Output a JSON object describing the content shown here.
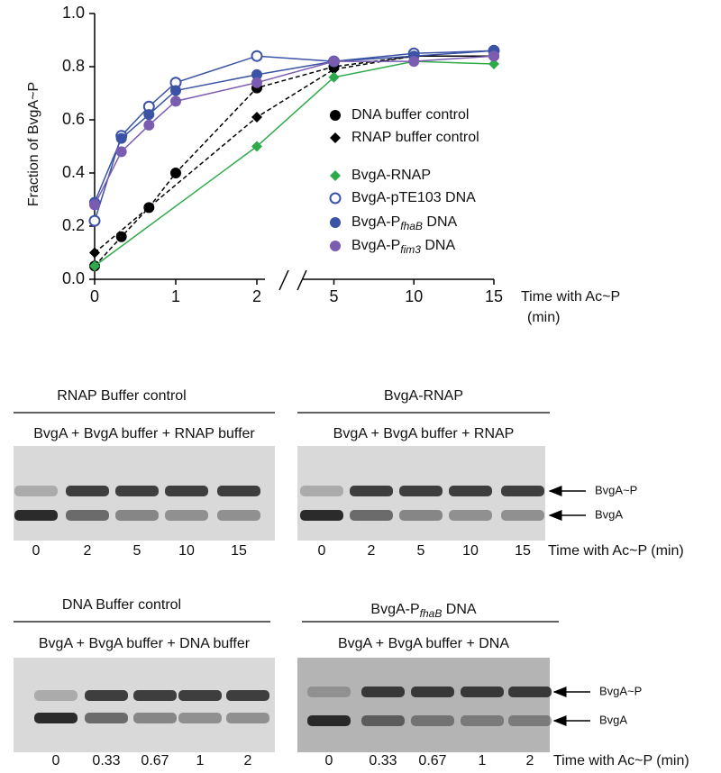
{
  "chart_data": {
    "type": "line",
    "ylabel": "Fraction of BvgA~P",
    "xlabel": "Time with Ac~P",
    "xlabel_unit": "(min)",
    "ylim": [
      0,
      1
    ],
    "yticks": [
      {
        "value": 0,
        "label": "0.0"
      },
      0.2,
      0.4,
      0.6,
      0.8,
      {
        "value": 1,
        "label": "1.0"
      }
    ],
    "x_segments": [
      {
        "xlim": [
          0,
          2.1
        ],
        "xticks": [
          0,
          1,
          2
        ]
      },
      {
        "xlim": [
          3,
          15
        ],
        "xticks": [
          5,
          10,
          15
        ]
      }
    ],
    "series": [
      {
        "name": "DNA buffer control",
        "color": "#000000",
        "marker": "circle",
        "dashed": true,
        "x": [
          0,
          0.33,
          0.67,
          1,
          2,
          5,
          10,
          15
        ],
        "values": [
          0.05,
          0.16,
          0.27,
          0.4,
          0.72,
          0.8,
          0.84,
          0.84
        ]
      },
      {
        "name": "RNAP buffer control",
        "color": "#000000",
        "marker": "diamond",
        "dashed": true,
        "x": [
          0,
          2,
          5,
          10,
          15
        ],
        "values": [
          0.1,
          0.61,
          0.79,
          0.84,
          0.84
        ]
      },
      {
        "name": "BvgA-RNAP",
        "color": "#2eaa4a",
        "marker": "diamond",
        "dashed": false,
        "x": [
          0,
          2,
          5,
          10,
          15
        ],
        "values": [
          0.05,
          0.5,
          0.76,
          0.82,
          0.81
        ]
      },
      {
        "name": "BvgA-pTE103 DNA",
        "color": "#3a53a4",
        "marker": "open-circle",
        "dashed": false,
        "x": [
          0,
          0.33,
          0.67,
          1,
          2,
          5,
          10,
          15
        ],
        "values": [
          0.22,
          0.54,
          0.65,
          0.74,
          0.84,
          0.82,
          0.85,
          0.86
        ]
      },
      {
        "name": "BvgA-P",
        "name_sub": "fhaB",
        "name_after": " DNA",
        "color": "#3a53a4",
        "marker": "circle",
        "dashed": false,
        "x": [
          0,
          0.33,
          0.67,
          1,
          2,
          5,
          10,
          15
        ],
        "values": [
          0.29,
          0.53,
          0.62,
          0.71,
          0.77,
          0.82,
          0.84,
          0.86
        ]
      },
      {
        "name": "BvgA-P",
        "name_sub": "fim3",
        "name_after": " DNA",
        "color": "#7a5cb0",
        "marker": "circle",
        "dashed": false,
        "x": [
          0,
          0.33,
          0.67,
          1,
          2,
          5,
          10,
          15
        ],
        "values": [
          0.28,
          0.48,
          0.58,
          0.67,
          0.74,
          0.82,
          0.82,
          0.84
        ]
      }
    ]
  },
  "gels": [
    {
      "title": "RNAP Buffer control",
      "header": "BvgA + BvgA buffer + RNAP buffer",
      "lanes": [
        "0",
        "2",
        "5",
        "10",
        "15"
      ]
    },
    {
      "title": "BvgA-RNAP",
      "header": "BvgA + BvgA buffer +  RNAP",
      "lanes": [
        "0",
        "2",
        "5",
        "10",
        "15"
      ],
      "time_label": "Time with Ac~P (min)",
      "upper_label": "BvgA~P",
      "lower_label": "BvgA"
    },
    {
      "title": "DNA Buffer control",
      "header": "BvgA + BvgA buffer + DNA buffer",
      "lanes": [
        "0",
        "0.33",
        "0.67",
        "1",
        "2"
      ]
    },
    {
      "title": "BvgA-P",
      "title_sub": "fhaB",
      "title_after": " DNA",
      "header": "BvgA + BvgA buffer +  DNA",
      "lanes": [
        "0",
        "0.33",
        "0.67",
        "1",
        "2"
      ],
      "time_label": "Time with Ac~P (min)",
      "upper_label": "BvgA~P",
      "lower_label": "BvgA"
    }
  ]
}
